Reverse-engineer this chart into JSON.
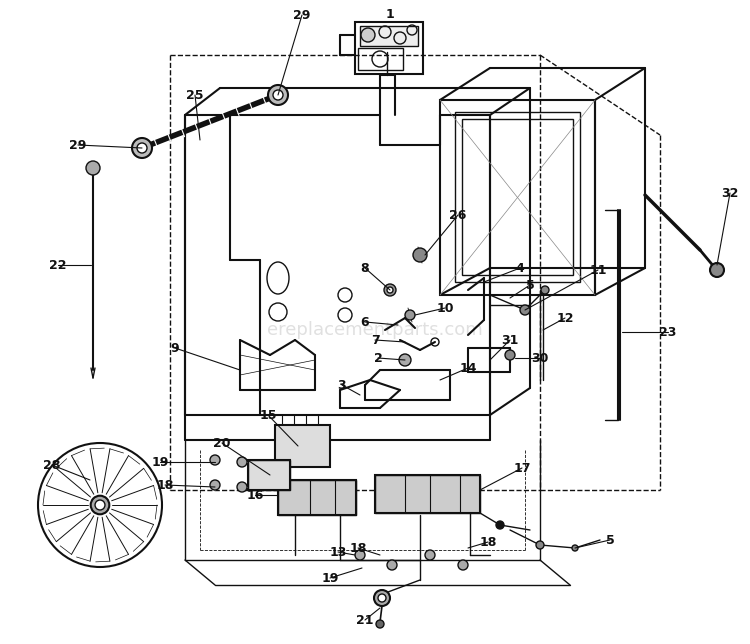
{
  "bg_color": "#ffffff",
  "line_color": "#111111",
  "label_color": "#111111",
  "watermark": "ereplacementparts.com",
  "fig_w": 7.5,
  "fig_h": 6.44,
  "dpi": 100
}
